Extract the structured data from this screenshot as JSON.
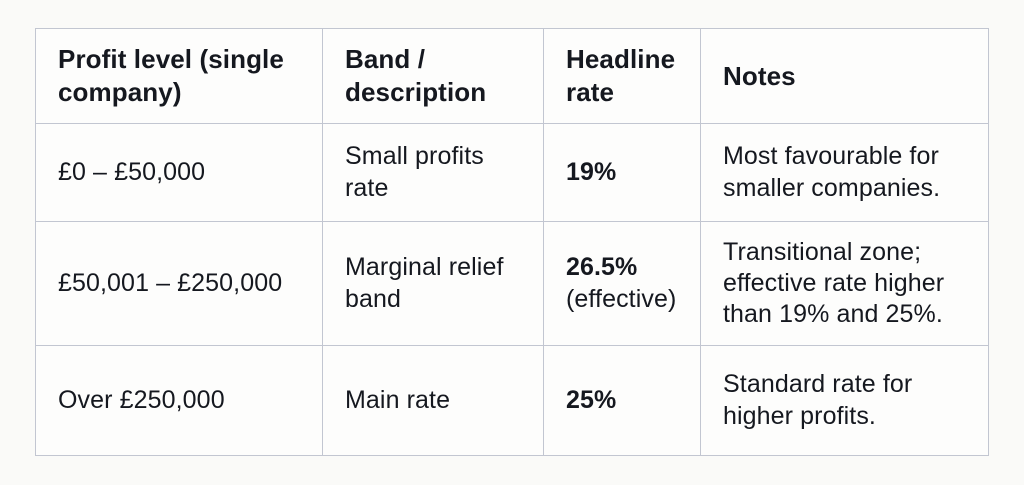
{
  "table": {
    "columns": [
      {
        "label": "Profit level (single company)"
      },
      {
        "label": "Band / description"
      },
      {
        "label": "Headline rate"
      },
      {
        "label": "Notes"
      }
    ],
    "rows": [
      {
        "profit_level": "£0 – £50,000",
        "band": "Small profits rate",
        "rate": "19%",
        "rate_note": "",
        "notes": "Most favourable for smaller companies."
      },
      {
        "profit_level": "£50,001 – £250,000",
        "band": "Marginal relief band",
        "rate": "26.5%",
        "rate_note": "(effective)",
        "notes": "Transitional zone; effective rate higher than 19% and 25%."
      },
      {
        "profit_level": "Over £250,000",
        "band": "Main rate",
        "rate": "25%",
        "rate_note": "",
        "notes": "Standard rate for higher profits."
      }
    ],
    "colors": {
      "background": "#fafaf8",
      "cell_background": "#fdfdfc",
      "border": "#c2c6d1",
      "text": "#15181f"
    }
  }
}
